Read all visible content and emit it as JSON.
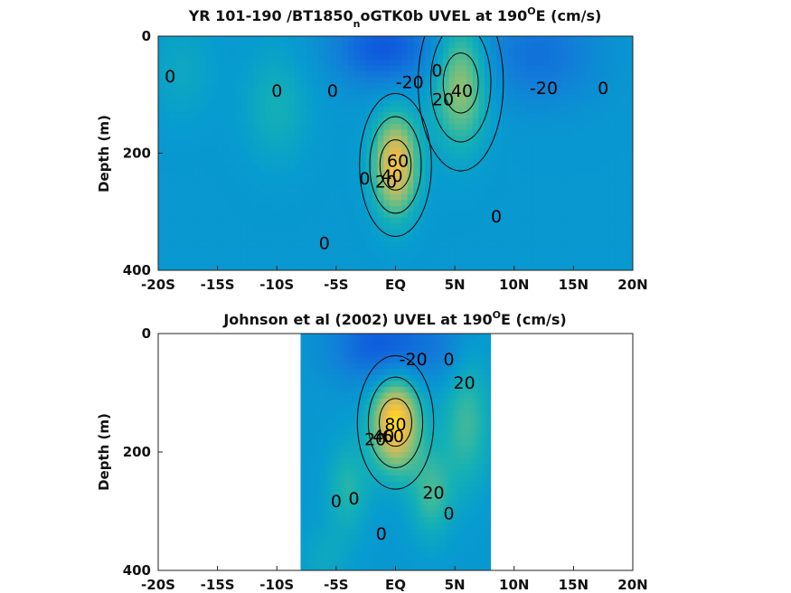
{
  "chart_data": [
    {
      "type": "heatmap",
      "title": "YR 101-190 /BT1850",
      "title_subscript": "n",
      "title_after_subscript": "oGTK0b UVEL at 190",
      "title_superscript": "O",
      "title_end": "E (cm/s)",
      "ylabel": "Depth (m)",
      "xlabel": "",
      "xlim": [
        -20,
        20
      ],
      "ylim": [
        0,
        400
      ],
      "y_reversed": true,
      "x_ticks": [
        -20,
        -15,
        -10,
        -5,
        0,
        5,
        10,
        15,
        20
      ],
      "x_tick_labels": [
        "-20S",
        "-15S",
        "-10S",
        "-5S",
        "EQ",
        "5N",
        "10N",
        "15N",
        "20N"
      ],
      "y_ticks": [
        0,
        200,
        400
      ],
      "y_tick_labels": [
        "0",
        "200",
        "400"
      ],
      "colormap": "parula",
      "color_range": [
        -60,
        80
      ],
      "features": [
        {
          "kind": "jet",
          "lat": 0,
          "depth": 220,
          "lat_width": 1.3,
          "depth_width": 60,
          "u": 65
        },
        {
          "kind": "jet",
          "lat": 5.5,
          "depth": 80,
          "lat_width": 1.6,
          "depth_width": 75,
          "u": 45
        },
        {
          "kind": "current",
          "lat": -1,
          "depth": 20,
          "lat_width": 3,
          "depth_width": 45,
          "u": -40
        },
        {
          "kind": "current",
          "lat": 12,
          "depth": 30,
          "lat_width": 3.5,
          "depth_width": 60,
          "u": -25
        },
        {
          "kind": "current",
          "lat": -10,
          "depth": 120,
          "lat_width": 2,
          "depth_width": 70,
          "u": 15
        },
        {
          "kind": "current",
          "lat": -18,
          "depth": 60,
          "lat_width": 2,
          "depth_width": 60,
          "u": 10
        }
      ],
      "contour_labels": [
        {
          "lat": -19,
          "depth": 70,
          "text": "0"
        },
        {
          "lat": -10,
          "depth": 95,
          "text": "0"
        },
        {
          "lat": -5.3,
          "depth": 95,
          "text": "0"
        },
        {
          "lat": 1.2,
          "depth": 80,
          "text": "-20"
        },
        {
          "lat": 3.5,
          "depth": 60,
          "text": "0"
        },
        {
          "lat": 4,
          "depth": 110,
          "text": "20"
        },
        {
          "lat": 5.6,
          "depth": 95,
          "text": "40"
        },
        {
          "lat": 12.5,
          "depth": 90,
          "text": "-20"
        },
        {
          "lat": 17.5,
          "depth": 90,
          "text": "0"
        },
        {
          "lat": -2.6,
          "depth": 245,
          "text": "0"
        },
        {
          "lat": -0.8,
          "depth": 250,
          "text": "20"
        },
        {
          "lat": -0.3,
          "depth": 240,
          "text": "40"
        },
        {
          "lat": 0.2,
          "depth": 215,
          "text": "60"
        },
        {
          "lat": 8.5,
          "depth": 310,
          "text": "0"
        },
        {
          "lat": -6,
          "depth": 355,
          "text": "0"
        }
      ]
    },
    {
      "type": "heatmap",
      "title": "Johnson et al (2002) UVEL at 190",
      "title_superscript": "O",
      "title_end": "E (cm/s)",
      "ylabel": "Depth (m)",
      "xlabel": "",
      "xlim": [
        -20,
        20
      ],
      "ylim": [
        0,
        400
      ],
      "y_reversed": true,
      "x_ticks": [
        -20,
        -15,
        -10,
        -5,
        0,
        5,
        10,
        15,
        20
      ],
      "x_tick_labels": [
        "-20S",
        "-15S",
        "-10S",
        "-5S",
        "EQ",
        "5N",
        "10N",
        "15N",
        "20N"
      ],
      "y_ticks": [
        0,
        200,
        400
      ],
      "y_tick_labels": [
        "0",
        "200",
        "400"
      ],
      "colormap": "parula",
      "color_range": [
        -60,
        80
      ],
      "data_lat_range": [
        -8,
        8
      ],
      "features": [
        {
          "kind": "jet",
          "lat": 0,
          "depth": 150,
          "lat_width": 1.4,
          "depth_width": 55,
          "u": 75
        },
        {
          "kind": "current",
          "lat": -1,
          "depth": 20,
          "lat_width": 3,
          "depth_width": 45,
          "u": -40
        },
        {
          "kind": "current",
          "lat": 4,
          "depth": 20,
          "lat_width": 1.5,
          "depth_width": 40,
          "u": -10
        },
        {
          "kind": "current",
          "lat": 6,
          "depth": 150,
          "lat_width": 1.5,
          "depth_width": 80,
          "u": 25
        },
        {
          "kind": "current",
          "lat": 3,
          "depth": 270,
          "lat_width": 1.3,
          "depth_width": 55,
          "u": 25
        },
        {
          "kind": "current",
          "lat": -4,
          "depth": 260,
          "lat_width": 1.3,
          "depth_width": 55,
          "u": 20
        },
        {
          "kind": "current",
          "lat": -6,
          "depth": 380,
          "lat_width": 1.5,
          "depth_width": 40,
          "u": 10
        }
      ],
      "contour_labels": [
        {
          "lat": 1.5,
          "depth": 45,
          "text": "-20"
        },
        {
          "lat": 4.5,
          "depth": 45,
          "text": "0"
        },
        {
          "lat": 5.8,
          "depth": 85,
          "text": "20"
        },
        {
          "lat": -1.7,
          "depth": 180,
          "text": "20"
        },
        {
          "lat": -1,
          "depth": 175,
          "text": "40"
        },
        {
          "lat": -0.2,
          "depth": 175,
          "text": "60"
        },
        {
          "lat": 0,
          "depth": 155,
          "text": "80"
        },
        {
          "lat": -5,
          "depth": 285,
          "text": "0"
        },
        {
          "lat": -3.5,
          "depth": 280,
          "text": "0"
        },
        {
          "lat": 3.2,
          "depth": 270,
          "text": "20"
        },
        {
          "lat": 4.5,
          "depth": 305,
          "text": "0"
        },
        {
          "lat": -1.2,
          "depth": 340,
          "text": "0"
        }
      ]
    }
  ]
}
